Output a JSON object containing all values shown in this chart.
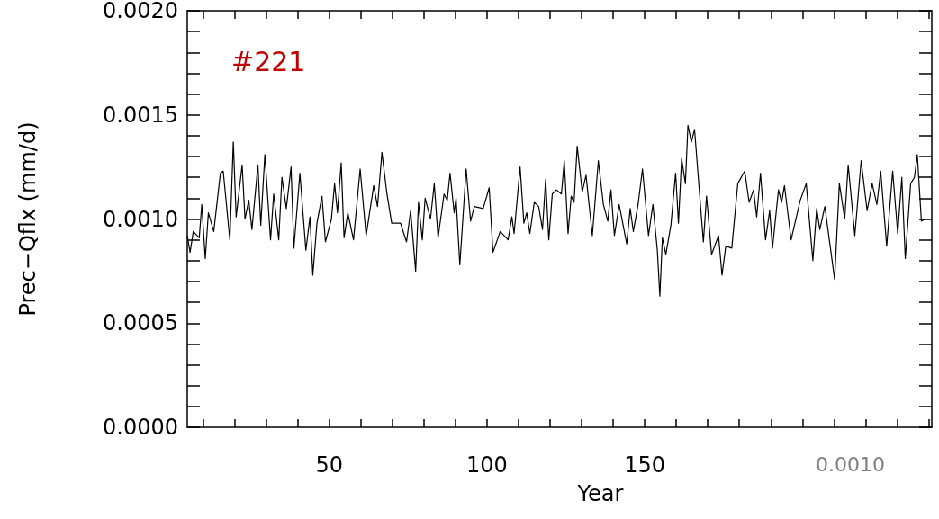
{
  "chart_data": {
    "type": "line",
    "title": "#221",
    "xlabel": "Year",
    "ylabel": "Prec−Qflx (mm/d)",
    "annotations": [
      "0.0010"
    ],
    "xlim": [
      5,
      241
    ],
    "ylim": [
      0,
      0.002
    ],
    "xticks": [
      {
        "value": 10,
        "label": null
      },
      {
        "value": 20,
        "label": null
      },
      {
        "value": 30,
        "label": null
      },
      {
        "value": 40,
        "label": null
      },
      50,
      {
        "value": 60,
        "label": null
      },
      {
        "value": 70,
        "label": null
      },
      {
        "value": 80,
        "label": null
      },
      {
        "value": 90,
        "label": null
      },
      100,
      {
        "value": 110,
        "label": null
      },
      {
        "value": 120,
        "label": null
      },
      {
        "value": 130,
        "label": null
      },
      {
        "value": 140,
        "label": null
      },
      150,
      {
        "value": 160,
        "label": null
      },
      {
        "value": 170,
        "label": null
      },
      {
        "value": 180,
        "label": null
      },
      {
        "value": 190,
        "label": null
      },
      {
        "value": 200,
        "label": null
      },
      {
        "value": 210,
        "label": null
      },
      {
        "value": 220,
        "label": null
      },
      {
        "value": 230,
        "label": null
      },
      {
        "value": 240,
        "label": null
      }
    ],
    "yticks": [
      {
        "value": 0,
        "label": "0.0000"
      },
      {
        "value": 0.0001,
        "label": null
      },
      {
        "value": 0.0002,
        "label": null
      },
      {
        "value": 0.0003,
        "label": null
      },
      {
        "value": 0.0004,
        "label": null
      },
      {
        "value": 0.0005,
        "label": "0.0005"
      },
      {
        "value": 0.0006,
        "label": null
      },
      {
        "value": 0.0007,
        "label": null
      },
      {
        "value": 0.0008,
        "label": null
      },
      {
        "value": 0.0009,
        "label": null
      },
      {
        "value": 0.001,
        "label": "0.0010"
      },
      {
        "value": 0.0011,
        "label": null
      },
      {
        "value": 0.0012,
        "label": null
      },
      {
        "value": 0.0013,
        "label": null
      },
      {
        "value": 0.0014,
        "label": null
      },
      {
        "value": 0.0015,
        "label": "0.0015"
      },
      {
        "value": 0.0016,
        "label": null
      },
      {
        "value": 0.0017,
        "label": null
      },
      {
        "value": 0.0018,
        "label": null
      },
      {
        "value": 0.0019,
        "label": null
      },
      {
        "value": 0.002,
        "label": "0.0020"
      }
    ],
    "marker": "none",
    "line_style": "solid",
    "series": [
      {
        "color": "#000000",
        "x": [
          5.0,
          5.9,
          6.9,
          8.8,
          9.6,
          10.7,
          11.7,
          13.4,
          15.5,
          16.4,
          18.5,
          19.6,
          20.5,
          22.4,
          23.3,
          24.5,
          25.5,
          27.4,
          28.3,
          29.6,
          31.4,
          32.4,
          34.0,
          35.0,
          36.4,
          37.9,
          38.8,
          40.7,
          42.6,
          43.9,
          44.8,
          46.1,
          47.7,
          48.8,
          50.7,
          51.7,
          52.6,
          53.8,
          54.7,
          55.9,
          57.7,
          59.8,
          61.7,
          64.1,
          65.3,
          66.7,
          68.3,
          69.8,
          72.6,
          74.5,
          75.8,
          77.4,
          78.3,
          79.5,
          80.4,
          82.1,
          83.3,
          84.5,
          86.4,
          87.4,
          88.3,
          89.6,
          90.2,
          91.4,
          93.4,
          94.8,
          96.0,
          98.8,
          100.7,
          101.9,
          104.2,
          106.7,
          107.9,
          108.6,
          110.5,
          111.7,
          112.6,
          113.6,
          115.0,
          116.4,
          117.6,
          118.6,
          119.6,
          120.7,
          122.0,
          123.6,
          124.5,
          125.7,
          126.7,
          127.6,
          128.6,
          130.2,
          131.4,
          133.4,
          135.3,
          136.9,
          138.3,
          139.3,
          140.4,
          141.9,
          144.3,
          145.4,
          146.4,
          147.9,
          149.3,
          151.2,
          152.6,
          154.0,
          154.8,
          155.6,
          156.7,
          158.3,
          159.8,
          160.7,
          161.7,
          162.9,
          163.7,
          164.8,
          165.8,
          167.4,
          168.6,
          169.6,
          171.2,
          173.4,
          174.5,
          175.7,
          177.6,
          179.5,
          181.7,
          183.1,
          184.5,
          185.5,
          186.7,
          188.3,
          189.6,
          190.5,
          192.4,
          193.4,
          194.3,
          196.4,
          199.3,
          201.2,
          203.3,
          204.5,
          205.5,
          207.1,
          210.2,
          211.7,
          213.4,
          214.5,
          216.6,
          218.6,
          220.5,
          222.1,
          223.6,
          224.8,
          226.7,
          228.6,
          230.2,
          231.5,
          232.6,
          234.3,
          235.5,
          236.4,
          237.7,
          239.1
        ],
        "values": [
          0.00092,
          0.00084,
          0.00094,
          0.00091,
          0.00107,
          0.00081,
          0.00103,
          0.00094,
          0.00122,
          0.00123,
          0.0009,
          0.00137,
          0.00101,
          0.00126,
          0.001,
          0.00109,
          0.00095,
          0.00126,
          0.00097,
          0.00131,
          0.0009,
          0.00112,
          0.0009,
          0.0012,
          0.00105,
          0.00125,
          0.00086,
          0.00122,
          0.00085,
          0.00101,
          0.00073,
          0.00098,
          0.00111,
          0.00089,
          0.001,
          0.00117,
          0.00103,
          0.00127,
          0.00091,
          0.00103,
          0.0009,
          0.00124,
          0.00092,
          0.00116,
          0.00106,
          0.00132,
          0.00112,
          0.00098,
          0.00098,
          0.00089,
          0.00104,
          0.00075,
          0.00108,
          0.0009,
          0.0011,
          0.001,
          0.00117,
          0.00091,
          0.00112,
          0.00109,
          0.00122,
          0.00103,
          0.0011,
          0.00078,
          0.00124,
          0.00099,
          0.00106,
          0.00105,
          0.00115,
          0.00084,
          0.00094,
          0.0009,
          0.00101,
          0.00093,
          0.00125,
          0.00098,
          0.00103,
          0.00093,
          0.00108,
          0.00106,
          0.00095,
          0.00119,
          0.0009,
          0.00112,
          0.00114,
          0.00112,
          0.00128,
          0.00093,
          0.00111,
          0.00108,
          0.00135,
          0.00113,
          0.00121,
          0.00092,
          0.00128,
          0.00107,
          0.00099,
          0.00114,
          0.00092,
          0.00107,
          0.00088,
          0.00105,
          0.00094,
          0.00107,
          0.00124,
          0.00092,
          0.00107,
          0.00085,
          0.00063,
          0.00091,
          0.00083,
          0.00097,
          0.00122,
          0.00098,
          0.00129,
          0.00117,
          0.00145,
          0.00137,
          0.00143,
          0.00112,
          0.00089,
          0.00111,
          0.00083,
          0.00092,
          0.00073,
          0.00087,
          0.00086,
          0.00117,
          0.00123,
          0.00108,
          0.00114,
          0.00101,
          0.00122,
          0.0009,
          0.00104,
          0.00086,
          0.00114,
          0.00108,
          0.00116,
          0.0009,
          0.00109,
          0.00117,
          0.0008,
          0.00105,
          0.00095,
          0.00106,
          0.00071,
          0.00117,
          0.001,
          0.00126,
          0.00092,
          0.00128,
          0.00104,
          0.00117,
          0.00107,
          0.00123,
          0.00087,
          0.00123,
          0.00093,
          0.0012,
          0.00081,
          0.00117,
          0.0012,
          0.00131,
          0.00099,
          0.001
        ]
      }
    ]
  }
}
